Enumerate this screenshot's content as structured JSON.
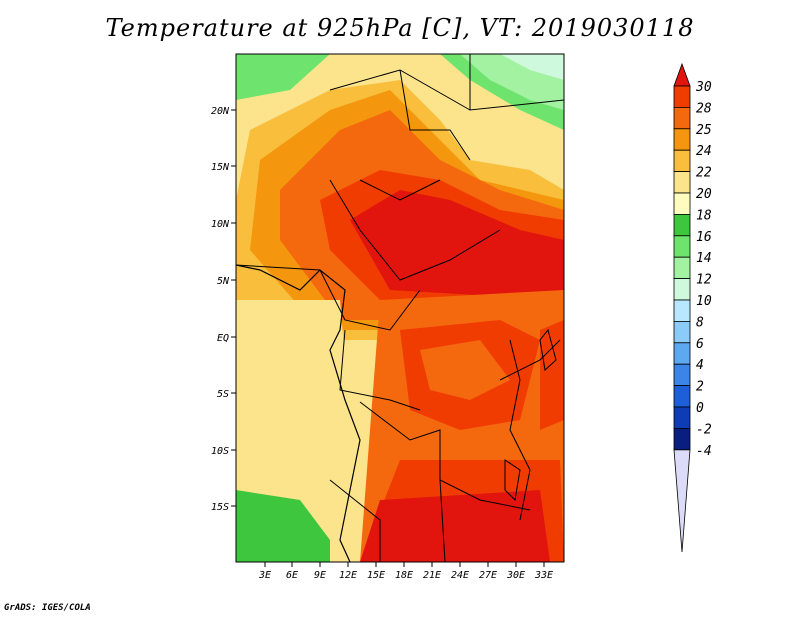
{
  "title": "Temperature at 925hPa [C], VT: 2019030118",
  "footer": "GrADS: IGES/COLA",
  "map": {
    "lat_ticks": [
      "20N",
      "15N",
      "10N",
      "5N",
      "EQ",
      "5S",
      "10S",
      "15S"
    ],
    "lon_ticks": [
      "3E",
      "6E",
      "9E",
      "12E",
      "15E",
      "18E",
      "21E",
      "24E",
      "27E",
      "30E",
      "33E"
    ]
  },
  "colorbar": {
    "levels": [
      "30",
      "28",
      "25",
      "24",
      "22",
      "20",
      "18",
      "16",
      "14",
      "12",
      "10",
      "8",
      "6",
      "4",
      "2",
      "0",
      "-2",
      "-4"
    ],
    "colors": [
      "#e2140e",
      "#f03c00",
      "#f5690e",
      "#f5960f",
      "#f8be3c",
      "#fbe48c",
      "#fefdbe",
      "#3ec63e",
      "#6ee46e",
      "#a2f2a2",
      "#cff9dc",
      "#b8e8ff",
      "#8ccaf8",
      "#5ea8f0",
      "#3c84e6",
      "#1e5ed8",
      "#0e3cb4",
      "#0a1e80",
      "#dcdcf8"
    ]
  }
}
